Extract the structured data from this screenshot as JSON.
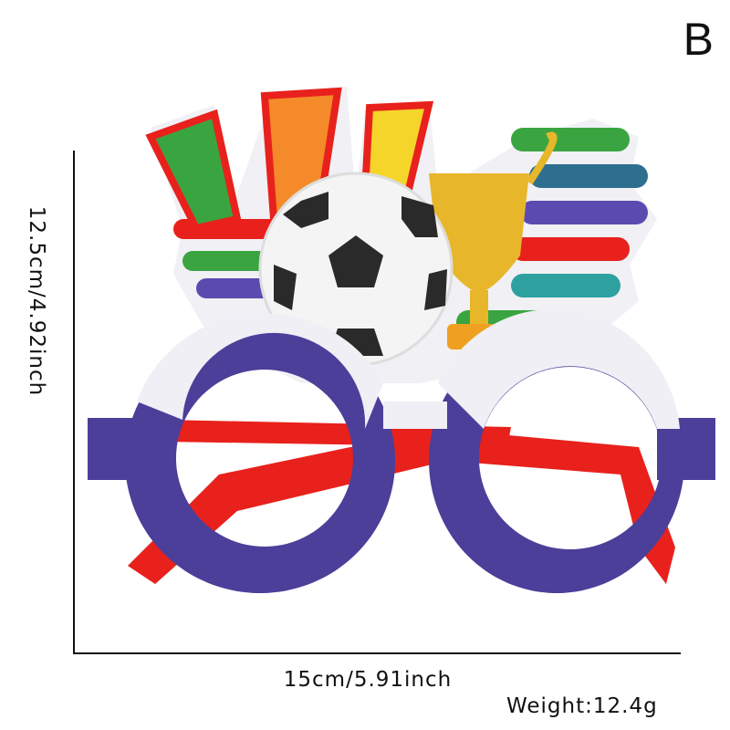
{
  "variant": "B",
  "dimensions": {
    "height": "12.5cm/4.92inch",
    "width": "15cm/5.91inch",
    "weight": "Weight:12.4g"
  },
  "product": {
    "icon": "football-trophy-party-glasses",
    "colors": {
      "frame": "#4b3f9a",
      "arms": "#e8211c",
      "trophy": "#e8b62a",
      "ball": "#2a2a2a"
    }
  }
}
